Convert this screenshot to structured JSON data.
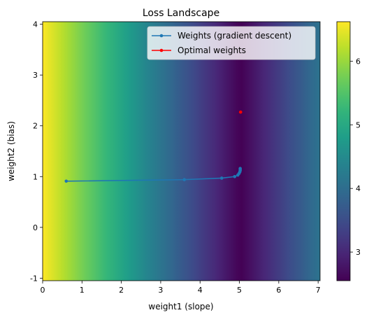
{
  "chart_data": {
    "type": "heatmap",
    "title": "Loss Landscape",
    "xlabel": "weight1 (slope)",
    "ylabel": "weight2 (bias)",
    "xlim": [
      0,
      7.05
    ],
    "ylim": [
      -1.05,
      4.05
    ],
    "xticks": [
      "0",
      "1",
      "2",
      "3",
      "4",
      "5",
      "6",
      "7"
    ],
    "yticks": [
      "-1",
      "0",
      "1",
      "2",
      "3",
      "4"
    ],
    "colormap": "viridis",
    "colorbar": {
      "range": [
        2.55,
        6.62
      ],
      "ticks": [
        "3",
        "4",
        "5",
        "6"
      ]
    },
    "legend": {
      "placement": "top-right",
      "entries": [
        "Weights (gradient descent)",
        "Optimal weights"
      ]
    },
    "series": [
      {
        "name": "Weights (gradient descent)",
        "color": "#1f77b4",
        "marker": "dot",
        "x": [
          0.6,
          3.6,
          4.55,
          4.88,
          4.96,
          4.99,
          5.01,
          5.02,
          5.02,
          5.02
        ],
        "y": [
          0.91,
          0.94,
          0.97,
          1.0,
          1.03,
          1.06,
          1.09,
          1.12,
          1.14,
          1.16
        ]
      },
      {
        "name": "Optimal weights",
        "color": "#ff0000",
        "marker": "dot",
        "x": [
          5.03
        ],
        "y": [
          2.27
        ]
      }
    ]
  }
}
